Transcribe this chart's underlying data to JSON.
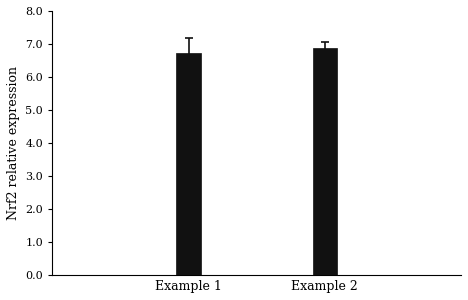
{
  "categories": [
    "Example 1",
    "Example 2"
  ],
  "values": [
    6.72,
    6.88
  ],
  "errors": [
    0.45,
    0.18
  ],
  "bar_color": "#111111",
  "bar_width": 0.18,
  "xlim": [
    0.0,
    3.0
  ],
  "x_positions": [
    1.0,
    2.0
  ],
  "ylim": [
    0.0,
    8.0
  ],
  "yticks": [
    0.0,
    1.0,
    2.0,
    3.0,
    4.0,
    5.0,
    6.0,
    7.0,
    8.0
  ],
  "ylabel": "Nrf2 relative expression",
  "xlabel": "",
  "background_color": "#ffffff",
  "ylabel_fontsize": 9,
  "tick_fontsize": 8,
  "xtick_fontsize": 9,
  "error_capsize": 3,
  "error_linewidth": 1.2,
  "error_color": "#111111"
}
